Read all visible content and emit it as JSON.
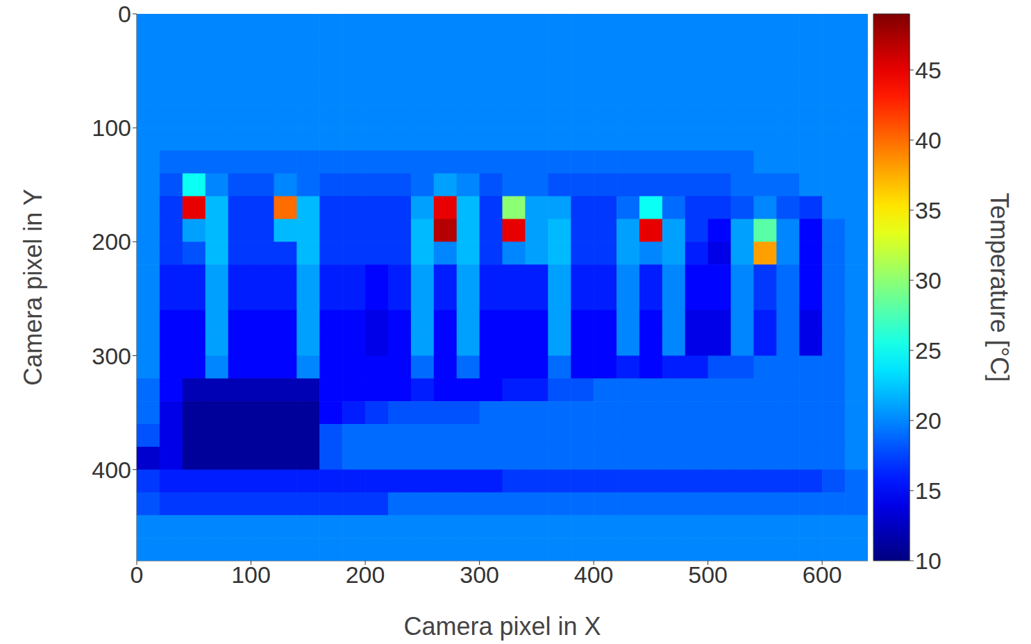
{
  "chart_data": {
    "type": "heatmap",
    "x_label": "Camera pixel in X",
    "y_label": "Camera pixel in Y",
    "xlim": [
      0,
      640
    ],
    "ylim": [
      480,
      0
    ],
    "xticks": [
      0,
      100,
      200,
      300,
      400,
      500,
      600
    ],
    "yticks": [
      0,
      100,
      200,
      300,
      400
    ],
    "color": "jet",
    "grid": false,
    "x": [
      10,
      30,
      50,
      70,
      90,
      110,
      130,
      150,
      170,
      190,
      210,
      230,
      250,
      270,
      290,
      310,
      330,
      350,
      370,
      390,
      410,
      430,
      450,
      470,
      490,
      510,
      530,
      550,
      570,
      590,
      610,
      630
    ],
    "y": [
      10,
      30,
      50,
      70,
      90,
      110,
      130,
      150,
      170,
      190,
      210,
      230,
      250,
      270,
      290,
      310,
      330,
      350,
      370,
      390,
      410,
      430,
      450,
      470
    ],
    "values": [
      [
        20,
        20,
        20,
        20,
        20,
        20,
        20,
        20,
        20,
        20,
        20,
        20,
        20,
        20,
        20,
        20,
        20,
        20,
        20,
        20,
        20,
        20,
        20,
        20,
        20,
        20,
        20,
        20,
        20,
        20,
        20,
        20
      ],
      [
        20,
        20,
        20,
        20,
        20,
        20,
        20,
        20,
        20,
        20,
        20,
        20,
        20,
        20,
        20,
        20,
        20,
        20,
        20,
        20,
        20,
        20,
        20,
        20,
        20,
        20,
        20,
        20,
        20,
        20,
        20,
        20
      ],
      [
        20,
        20,
        20,
        20,
        20,
        20,
        20,
        20,
        20,
        20,
        20,
        20,
        20,
        20,
        20,
        20,
        20,
        20,
        20,
        20,
        20,
        20,
        20,
        20,
        20,
        20,
        20,
        20,
        20,
        20,
        20,
        20
      ],
      [
        20,
        20,
        20,
        20,
        20,
        20,
        20,
        20,
        20,
        20,
        20,
        20,
        20,
        20,
        20,
        20,
        20,
        20,
        20,
        20,
        20,
        20,
        20,
        20,
        20,
        20,
        20,
        20,
        20,
        20,
        20,
        20
      ],
      [
        20,
        20,
        20,
        20,
        20,
        20,
        20,
        20,
        20,
        20,
        20,
        20,
        20,
        20,
        20,
        20,
        20,
        20,
        20,
        20,
        20,
        20,
        20,
        20,
        20,
        20,
        20,
        20,
        20,
        20,
        20,
        20
      ],
      [
        20,
        20,
        20,
        20,
        20,
        20,
        20,
        20,
        20,
        20,
        20,
        20,
        20,
        20,
        20,
        20,
        20,
        20,
        20,
        20,
        20,
        20,
        20,
        20,
        20,
        20,
        20,
        20,
        20,
        20,
        20,
        20
      ],
      [
        20,
        19,
        19,
        19,
        19,
        19,
        19,
        19,
        19,
        19,
        19,
        19,
        19,
        19,
        19,
        19,
        19,
        19,
        19,
        19,
        19,
        19,
        19,
        19,
        19,
        19,
        19,
        20,
        20,
        20,
        20,
        20
      ],
      [
        20,
        18,
        25,
        20,
        18,
        18,
        20,
        19,
        18,
        18,
        18,
        18,
        19,
        21,
        20,
        18,
        19,
        19,
        18,
        18,
        18,
        18,
        18,
        18,
        18,
        18,
        19,
        19,
        19,
        20,
        20,
        20
      ],
      [
        20,
        17,
        45,
        22,
        17,
        17,
        40,
        22,
        17,
        17,
        17,
        17,
        21,
        45,
        22,
        17,
        30,
        21,
        21,
        17,
        17,
        19,
        25,
        19,
        17,
        17,
        18,
        20,
        18,
        17,
        20,
        20
      ],
      [
        20,
        17,
        21,
        22,
        17,
        17,
        22,
        22,
        17,
        17,
        17,
        17,
        22,
        47,
        22,
        17,
        45,
        21,
        22,
        17,
        17,
        21,
        45,
        21,
        17,
        15,
        21,
        28,
        20,
        15,
        19,
        20
      ],
      [
        20,
        17,
        18,
        22,
        17,
        17,
        17,
        22,
        17,
        17,
        17,
        17,
        22,
        20,
        22,
        17,
        20,
        21,
        22,
        17,
        17,
        21,
        20,
        21,
        16,
        14,
        21,
        38,
        20,
        15,
        19,
        20
      ],
      [
        20,
        16,
        16,
        21,
        16,
        16,
        16,
        21,
        16,
        16,
        15,
        16,
        21,
        16,
        21,
        16,
        16,
        16,
        21,
        16,
        16,
        20,
        16,
        20,
        15,
        15,
        20,
        17,
        19,
        15,
        19,
        20
      ],
      [
        20,
        16,
        16,
        21,
        16,
        16,
        16,
        21,
        16,
        16,
        15,
        16,
        21,
        16,
        21,
        16,
        16,
        16,
        21,
        16,
        16,
        20,
        16,
        20,
        15,
        15,
        20,
        17,
        19,
        15,
        19,
        20
      ],
      [
        20,
        15,
        15,
        21,
        15,
        15,
        15,
        21,
        15,
        15,
        14,
        15,
        21,
        15,
        21,
        15,
        15,
        15,
        21,
        15,
        15,
        20,
        15,
        20,
        14,
        14,
        20,
        16,
        19,
        14,
        19,
        20
      ],
      [
        20,
        15,
        15,
        21,
        15,
        15,
        15,
        21,
        15,
        15,
        14,
        15,
        21,
        15,
        21,
        15,
        15,
        15,
        21,
        15,
        15,
        20,
        15,
        20,
        14,
        14,
        20,
        16,
        19,
        14,
        19,
        20
      ],
      [
        20,
        15,
        15,
        20,
        15,
        15,
        15,
        20,
        15,
        15,
        15,
        15,
        19,
        15,
        19,
        15,
        15,
        15,
        19,
        15,
        15,
        16,
        15,
        16,
        16,
        18,
        18,
        19,
        19,
        19,
        19,
        20
      ],
      [
        19,
        15,
        12,
        12,
        12,
        12,
        12,
        12,
        15,
        15,
        15,
        15,
        16,
        15,
        15,
        15,
        16,
        16,
        18,
        18,
        19,
        19,
        19,
        19,
        19,
        19,
        19,
        19,
        19,
        19,
        19,
        20
      ],
      [
        19,
        14,
        11,
        11,
        11,
        11,
        11,
        11,
        15,
        16,
        17,
        18,
        18,
        18,
        18,
        19,
        19,
        19,
        19,
        19,
        19,
        19,
        19,
        19,
        19,
        19,
        19,
        19,
        19,
        19,
        19,
        20
      ],
      [
        18,
        14,
        11,
        11,
        11,
        11,
        11,
        11,
        18,
        19,
        19,
        19,
        19,
        19,
        19,
        19,
        19,
        19,
        19,
        19,
        19,
        19,
        19,
        19,
        19,
        19,
        19,
        19,
        19,
        19,
        19,
        20
      ],
      [
        13,
        14,
        11,
        11,
        11,
        11,
        11,
        11,
        18,
        19,
        19,
        19,
        19,
        19,
        19,
        19,
        19,
        19,
        19,
        19,
        19,
        19,
        19,
        19,
        19,
        19,
        19,
        19,
        19,
        19,
        19,
        20
      ],
      [
        17,
        16,
        16,
        16,
        16,
        16,
        16,
        16,
        16,
        16,
        16,
        16,
        16,
        16,
        16,
        16,
        17,
        17,
        17,
        17,
        17,
        17,
        17,
        17,
        17,
        17,
        17,
        17,
        17,
        17,
        18,
        19
      ],
      [
        18,
        17,
        17,
        17,
        17,
        17,
        17,
        17,
        17,
        17,
        17,
        19,
        19,
        19,
        19,
        19,
        19,
        19,
        19,
        19,
        19,
        19,
        19,
        19,
        19,
        19,
        19,
        19,
        19,
        19,
        19,
        19
      ],
      [
        20,
        20,
        20,
        20,
        20,
        20,
        20,
        20,
        20,
        20,
        20,
        20,
        20,
        20,
        20,
        20,
        20,
        20,
        20,
        20,
        20,
        20,
        20,
        20,
        20,
        20,
        20,
        20,
        20,
        20,
        20,
        20
      ],
      [
        20,
        20,
        20,
        20,
        20,
        20,
        20,
        20,
        20,
        20,
        20,
        20,
        20,
        20,
        20,
        20,
        20,
        20,
        20,
        20,
        20,
        20,
        20,
        20,
        20,
        20,
        20,
        20,
        20,
        20,
        20,
        20
      ]
    ],
    "colorbar": {
      "label": "Temperature [°C]",
      "range": [
        10,
        49
      ],
      "ticks": [
        10,
        15,
        20,
        25,
        30,
        35,
        40,
        45
      ]
    }
  }
}
